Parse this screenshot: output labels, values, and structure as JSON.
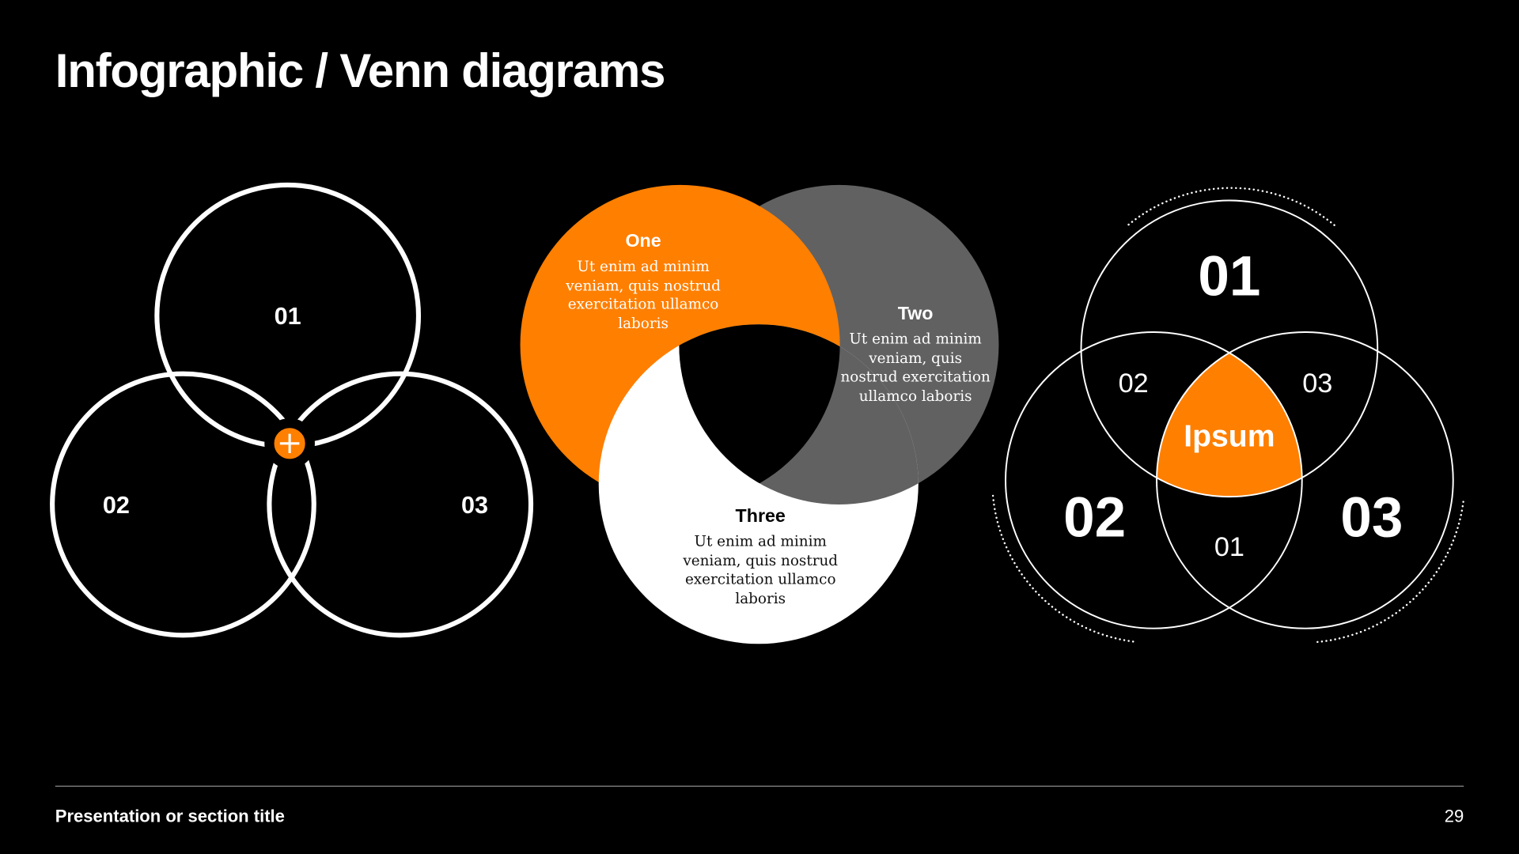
{
  "slide": {
    "title": "Infographic / Venn diagrams",
    "footer_title": "Presentation or section title",
    "page_number": "29"
  },
  "colors": {
    "background": "#000000",
    "accent": "#FF7F00",
    "gray": "#616161",
    "white": "#FFFFFF",
    "footer_rule": "#8C8C8C"
  },
  "venn_outline": {
    "labels": [
      "01",
      "02",
      "03"
    ],
    "center_icon": "plus-icon"
  },
  "venn_filled": {
    "sets": [
      {
        "title": "One",
        "lines": [
          "Ut enim ad minim",
          "veniam, quis nostrud",
          "exercitation ullamco",
          "laboris"
        ]
      },
      {
        "title": "Two",
        "lines": [
          "Ut enim ad minim",
          "veniam, quis",
          "nostrud exercitation",
          "ullamco laboris"
        ]
      },
      {
        "title": "Three",
        "lines": [
          "Ut enim ad minim",
          "veniam, quis nostrud",
          "exercitation ullamco",
          "laboris"
        ]
      }
    ]
  },
  "venn_labeled": {
    "main_labels": [
      "01",
      "02",
      "03"
    ],
    "overlap_labels": [
      "02",
      "03",
      "01"
    ],
    "center_label": "Ipsum"
  }
}
